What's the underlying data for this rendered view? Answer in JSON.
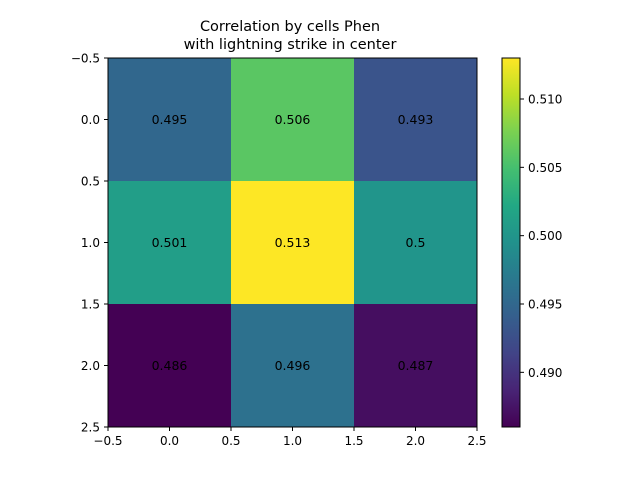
{
  "chart_data": {
    "type": "heatmap",
    "title_lines": [
      "Correlation by cells Phen",
      "with lightning strike in center"
    ],
    "xlabel": "",
    "ylabel": "",
    "colormap": "viridis",
    "values": [
      [
        0.495,
        0.506,
        0.493
      ],
      [
        0.501,
        0.513,
        0.5
      ],
      [
        0.486,
        0.496,
        0.487
      ]
    ],
    "cell_labels": [
      [
        "0.495",
        "0.506",
        "0.493"
      ],
      [
        "0.501",
        "0.513",
        "0.5"
      ],
      [
        "0.486",
        "0.496",
        "0.487"
      ]
    ],
    "xlim": [
      -0.5,
      2.5
    ],
    "ylim": [
      2.5,
      -0.5
    ],
    "x_ticks": [
      -0.5,
      0.0,
      0.5,
      1.0,
      1.5,
      2.0,
      2.5
    ],
    "x_tick_labels": [
      "−0.5",
      "0.0",
      "0.5",
      "1.0",
      "1.5",
      "2.0",
      "2.5"
    ],
    "y_ticks": [
      -0.5,
      0.0,
      0.5,
      1.0,
      1.5,
      2.0,
      2.5
    ],
    "y_tick_labels": [
      "−0.5",
      "0.0",
      "0.5",
      "1.0",
      "1.5",
      "2.0",
      "2.5"
    ],
    "colorbar": {
      "range": [
        0.486,
        0.513
      ],
      "ticks": [
        0.49,
        0.495,
        0.5,
        0.505,
        0.51
      ],
      "tick_labels": [
        "0.490",
        "0.495",
        "0.500",
        "0.505",
        "0.510"
      ]
    },
    "grid": false
  }
}
